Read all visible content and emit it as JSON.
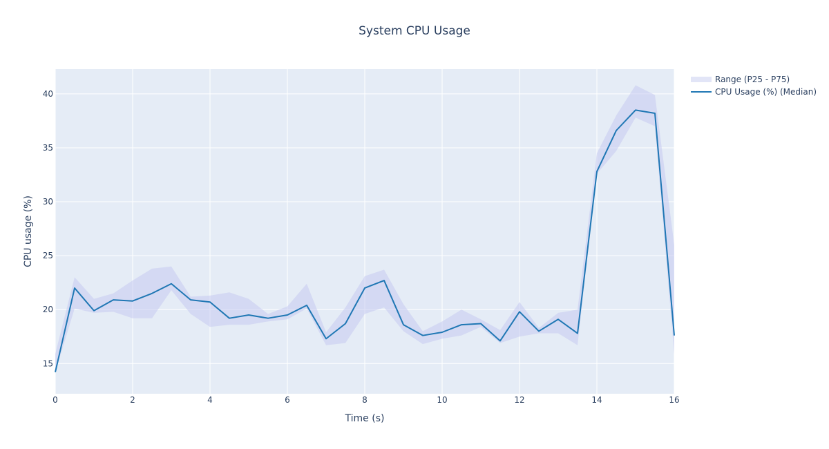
{
  "chart_data": {
    "type": "line",
    "title": "System CPU Usage",
    "xlabel": "Time (s)",
    "ylabel": "CPU usage (%)",
    "xlim": [
      0,
      16
    ],
    "ylim": [
      12.2,
      42.3
    ],
    "xticks": [
      0,
      2,
      4,
      6,
      8,
      10,
      12,
      14,
      16
    ],
    "yticks": [
      15,
      20,
      25,
      30,
      35,
      40
    ],
    "grid": true,
    "legend_position": "top-right",
    "colors": {
      "line": "#1f77b4",
      "band": "#c6cbf0",
      "plot_bg": "#e5ecf6",
      "grid": "#ffffff",
      "text": "#2a3f5f"
    },
    "x": [
      0,
      0.5,
      1,
      1.5,
      2,
      2.5,
      3,
      3.5,
      4,
      4.5,
      5,
      5.5,
      6,
      6.5,
      7,
      7.5,
      8,
      8.5,
      9,
      9.5,
      10,
      10.5,
      11,
      11.5,
      12,
      12.5,
      13,
      13.5,
      14,
      14.5,
      15,
      15.5,
      16
    ],
    "series": [
      {
        "name": "CPU Usage (%) (Median)",
        "values": [
          14.2,
          22.0,
          19.9,
          20.9,
          20.8,
          21.5,
          22.4,
          20.9,
          20.7,
          19.2,
          19.5,
          19.2,
          19.5,
          20.4,
          17.3,
          18.7,
          22.0,
          22.7,
          18.6,
          17.6,
          17.9,
          18.6,
          18.7,
          17.1,
          19.8,
          18.0,
          19.1,
          17.8,
          32.8,
          36.6,
          38.5,
          38.2,
          17.6
        ]
      }
    ],
    "band": {
      "name": "Range (P25 - P75)",
      "upper": [
        15.9,
        23.0,
        21.0,
        21.5,
        22.7,
        23.8,
        24.0,
        21.2,
        21.3,
        21.6,
        21.0,
        19.6,
        20.3,
        22.4,
        17.9,
        20.2,
        23.1,
        23.7,
        20.5,
        18.0,
        18.9,
        20.0,
        19.1,
        18.1,
        20.7,
        18.3,
        19.7,
        20.0,
        34.5,
        38.0,
        40.8,
        39.9,
        26.0
      ],
      "lower": [
        14.2,
        20.1,
        19.7,
        19.8,
        19.2,
        19.2,
        21.8,
        19.6,
        18.4,
        18.6,
        18.6,
        18.9,
        19.1,
        20.1,
        16.7,
        16.9,
        19.6,
        20.2,
        18.0,
        16.8,
        17.3,
        17.6,
        18.4,
        16.9,
        17.5,
        17.8,
        17.8,
        16.7,
        32.6,
        34.7,
        37.8,
        37.0,
        15.9
      ]
    }
  }
}
